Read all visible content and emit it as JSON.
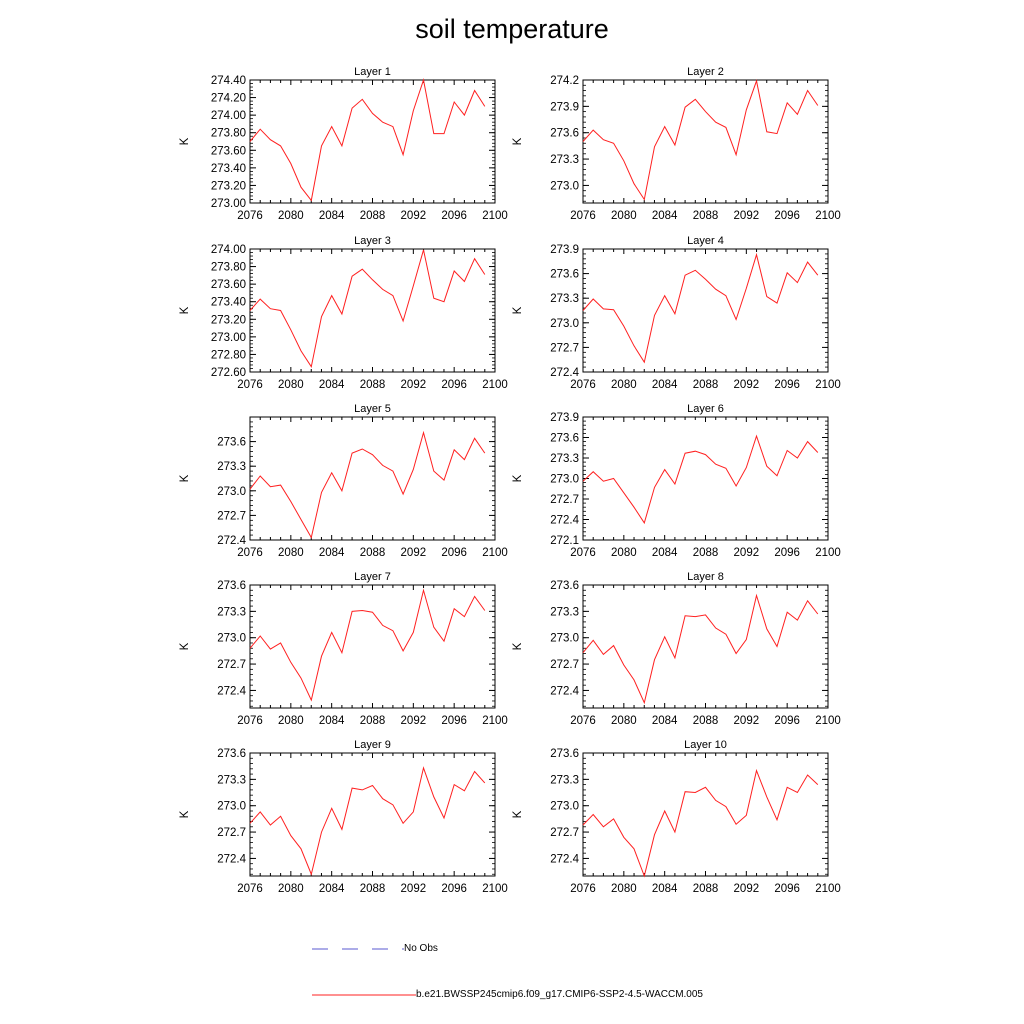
{
  "title": "soil temperature",
  "legend": {
    "obs_label": "No Obs",
    "obs_color": "#5a5ad0",
    "model_label": "b.e21.BWSSP245cmip6.f09_g17.CMIP6-SSP2-4.5-WACCM.005",
    "model_color": "#ff2020"
  },
  "chart_data": [
    {
      "type": "line",
      "title": "Layer 1",
      "ylabel": "K",
      "xlim": [
        2076,
        2100
      ],
      "ylim": [
        273.0,
        274.4
      ],
      "xticks": [
        "2076",
        "2080",
        "2084",
        "2088",
        "2092",
        "2096",
        "2100"
      ],
      "yticks": [
        "273.00",
        "273.20",
        "273.40",
        "273.60",
        "273.80",
        "274.00",
        "274.20",
        "274.40"
      ],
      "x": [
        2076,
        2077,
        2078,
        2079,
        2080,
        2081,
        2082,
        2083,
        2084,
        2085,
        2086,
        2087,
        2088,
        2089,
        2090,
        2091,
        2092,
        2093,
        2094,
        2095,
        2096,
        2097,
        2098,
        2099
      ],
      "series": [
        {
          "values": [
            273.7,
            273.84,
            273.72,
            273.65,
            273.45,
            273.18,
            273.03,
            273.65,
            273.87,
            273.65,
            274.08,
            274.18,
            274.02,
            273.92,
            273.87,
            273.55,
            274.05,
            274.4,
            273.79,
            273.79,
            274.15,
            274.0,
            274.28,
            274.1
          ]
        }
      ]
    },
    {
      "type": "line",
      "title": "Layer 2",
      "ylabel": "K",
      "xlim": [
        2076,
        2100
      ],
      "ylim": [
        272.8,
        274.2
      ],
      "xticks": [
        "2076",
        "2080",
        "2084",
        "2088",
        "2092",
        "2096",
        "2100"
      ],
      "yticks": [
        "273.0",
        "273.3",
        "273.6",
        "273.9",
        "274.2"
      ],
      "x": [
        2076,
        2077,
        2078,
        2079,
        2080,
        2081,
        2082,
        2083,
        2084,
        2085,
        2086,
        2087,
        2088,
        2089,
        2090,
        2091,
        2092,
        2093,
        2094,
        2095,
        2096,
        2097,
        2098,
        2099
      ],
      "series": [
        {
          "values": [
            273.5,
            273.63,
            273.52,
            273.48,
            273.28,
            273.02,
            272.84,
            273.44,
            273.67,
            273.46,
            273.89,
            273.98,
            273.84,
            273.72,
            273.66,
            273.35,
            273.86,
            274.19,
            273.61,
            273.59,
            273.94,
            273.81,
            274.08,
            273.91
          ]
        }
      ]
    },
    {
      "type": "line",
      "title": "Layer 3",
      "ylabel": "K",
      "xlim": [
        2076,
        2100
      ],
      "ylim": [
        272.6,
        274.0
      ],
      "xticks": [
        "2076",
        "2080",
        "2084",
        "2088",
        "2092",
        "2096",
        "2100"
      ],
      "yticks": [
        "272.60",
        "272.80",
        "273.00",
        "273.20",
        "273.40",
        "273.60",
        "273.80",
        "274.00"
      ],
      "x": [
        2076,
        2077,
        2078,
        2079,
        2080,
        2081,
        2082,
        2083,
        2084,
        2085,
        2086,
        2087,
        2088,
        2089,
        2090,
        2091,
        2092,
        2093,
        2094,
        2095,
        2096,
        2097,
        2098,
        2099
      ],
      "series": [
        {
          "values": [
            273.3,
            273.43,
            273.32,
            273.3,
            273.08,
            272.84,
            272.66,
            273.23,
            273.47,
            273.26,
            273.69,
            273.77,
            273.65,
            273.54,
            273.47,
            273.18,
            273.58,
            273.99,
            273.44,
            273.4,
            273.75,
            273.63,
            273.89,
            273.71
          ]
        }
      ]
    },
    {
      "type": "line",
      "title": "Layer 4",
      "ylabel": "K",
      "xlim": [
        2076,
        2100
      ],
      "ylim": [
        272.4,
        273.9
      ],
      "xticks": [
        "2076",
        "2080",
        "2084",
        "2088",
        "2092",
        "2096",
        "2100"
      ],
      "yticks": [
        "272.4",
        "272.7",
        "273.0",
        "273.3",
        "273.6",
        "273.9"
      ],
      "x": [
        2076,
        2077,
        2078,
        2079,
        2080,
        2081,
        2082,
        2083,
        2084,
        2085,
        2086,
        2087,
        2088,
        2089,
        2090,
        2091,
        2092,
        2093,
        2094,
        2095,
        2096,
        2097,
        2098,
        2099
      ],
      "series": [
        {
          "values": [
            273.15,
            273.29,
            273.17,
            273.16,
            272.96,
            272.72,
            272.52,
            273.09,
            273.33,
            273.11,
            273.58,
            273.64,
            273.53,
            273.41,
            273.33,
            273.04,
            273.42,
            273.83,
            273.32,
            273.24,
            273.61,
            273.49,
            273.74,
            273.58
          ]
        }
      ]
    },
    {
      "type": "line",
      "title": "Layer 5",
      "ylabel": "K",
      "xlim": [
        2076,
        2100
      ],
      "ylim": [
        272.4,
        273.9
      ],
      "xticks": [
        "2076",
        "2080",
        "2084",
        "2088",
        "2092",
        "2096",
        "2100"
      ],
      "yticks": [
        "272.4",
        "272.7",
        "273.0",
        "273.3",
        "273.6"
      ],
      "x": [
        2076,
        2077,
        2078,
        2079,
        2080,
        2081,
        2082,
        2083,
        2084,
        2085,
        2086,
        2087,
        2088,
        2089,
        2090,
        2091,
        2092,
        2093,
        2094,
        2095,
        2096,
        2097,
        2098,
        2099
      ],
      "series": [
        {
          "values": [
            273.02,
            273.18,
            273.05,
            273.07,
            272.87,
            272.65,
            272.43,
            272.98,
            273.22,
            273.0,
            273.46,
            273.51,
            273.44,
            273.31,
            273.24,
            272.96,
            273.26,
            273.71,
            273.24,
            273.13,
            273.5,
            273.38,
            273.64,
            273.46
          ]
        }
      ]
    },
    {
      "type": "line",
      "title": "Layer 6",
      "ylabel": "K",
      "xlim": [
        2076,
        2100
      ],
      "ylim": [
        272.1,
        273.9
      ],
      "xticks": [
        "2076",
        "2080",
        "2084",
        "2088",
        "2092",
        "2096",
        "2100"
      ],
      "yticks": [
        "272.1",
        "272.4",
        "272.7",
        "273.0",
        "273.3",
        "273.6",
        "273.9"
      ],
      "x": [
        2076,
        2077,
        2078,
        2079,
        2080,
        2081,
        2082,
        2083,
        2084,
        2085,
        2086,
        2087,
        2088,
        2089,
        2090,
        2091,
        2092,
        2093,
        2094,
        2095,
        2096,
        2097,
        2098,
        2099
      ],
      "series": [
        {
          "values": [
            272.96,
            273.1,
            272.96,
            273.0,
            272.79,
            272.58,
            272.35,
            272.87,
            273.13,
            272.92,
            273.37,
            273.4,
            273.35,
            273.21,
            273.15,
            272.89,
            273.16,
            273.62,
            273.18,
            273.04,
            273.41,
            273.3,
            273.54,
            273.38
          ]
        }
      ]
    },
    {
      "type": "line",
      "title": "Layer 7",
      "ylabel": "K",
      "xlim": [
        2076,
        2100
      ],
      "ylim": [
        272.2,
        273.6
      ],
      "xticks": [
        "2076",
        "2080",
        "2084",
        "2088",
        "2092",
        "2096",
        "2100"
      ],
      "yticks": [
        "272.4",
        "272.7",
        "273.0",
        "273.3",
        "273.6"
      ],
      "x": [
        2076,
        2077,
        2078,
        2079,
        2080,
        2081,
        2082,
        2083,
        2084,
        2085,
        2086,
        2087,
        2088,
        2089,
        2090,
        2091,
        2092,
        2093,
        2094,
        2095,
        2096,
        2097,
        2098,
        2099
      ],
      "series": [
        {
          "values": [
            272.88,
            273.02,
            272.87,
            272.94,
            272.72,
            272.54,
            272.29,
            272.79,
            273.06,
            272.83,
            273.3,
            273.31,
            273.29,
            273.14,
            273.08,
            272.85,
            273.06,
            273.54,
            273.12,
            272.96,
            273.33,
            273.24,
            273.47,
            273.31
          ]
        }
      ]
    },
    {
      "type": "line",
      "title": "Layer 8",
      "ylabel": "K",
      "xlim": [
        2076,
        2100
      ],
      "ylim": [
        272.2,
        273.6
      ],
      "xticks": [
        "2076",
        "2080",
        "2084",
        "2088",
        "2092",
        "2096",
        "2100"
      ],
      "yticks": [
        "272.4",
        "272.7",
        "273.0",
        "273.3",
        "273.6"
      ],
      "x": [
        2076,
        2077,
        2078,
        2079,
        2080,
        2081,
        2082,
        2083,
        2084,
        2085,
        2086,
        2087,
        2088,
        2089,
        2090,
        2091,
        2092,
        2093,
        2094,
        2095,
        2096,
        2097,
        2098,
        2099
      ],
      "series": [
        {
          "values": [
            272.83,
            272.97,
            272.81,
            272.91,
            272.69,
            272.52,
            272.26,
            272.75,
            273.01,
            272.77,
            273.25,
            273.24,
            273.26,
            273.11,
            273.04,
            272.82,
            272.98,
            273.48,
            273.1,
            272.9,
            273.29,
            273.2,
            273.42,
            273.27
          ]
        }
      ]
    },
    {
      "type": "line",
      "title": "Layer 9",
      "ylabel": "K",
      "xlim": [
        2076,
        2100
      ],
      "ylim": [
        272.2,
        273.6
      ],
      "xticks": [
        "2076",
        "2080",
        "2084",
        "2088",
        "2092",
        "2096",
        "2100"
      ],
      "yticks": [
        "272.4",
        "272.7",
        "273.0",
        "273.3",
        "273.6"
      ],
      "x": [
        2076,
        2077,
        2078,
        2079,
        2080,
        2081,
        2082,
        2083,
        2084,
        2085,
        2086,
        2087,
        2088,
        2089,
        2090,
        2091,
        2092,
        2093,
        2094,
        2095,
        2096,
        2097,
        2098,
        2099
      ],
      "series": [
        {
          "values": [
            272.8,
            272.93,
            272.78,
            272.88,
            272.66,
            272.51,
            272.22,
            272.7,
            272.97,
            272.73,
            273.2,
            273.18,
            273.23,
            273.08,
            273.01,
            272.8,
            272.93,
            273.43,
            273.1,
            272.86,
            273.24,
            273.17,
            273.39,
            273.26
          ]
        }
      ]
    },
    {
      "type": "line",
      "title": "Layer 10",
      "ylabel": "K",
      "xlim": [
        2076,
        2100
      ],
      "ylim": [
        272.2,
        273.6
      ],
      "xticks": [
        "2076",
        "2080",
        "2084",
        "2088",
        "2092",
        "2096",
        "2100"
      ],
      "yticks": [
        "272.4",
        "272.7",
        "273.0",
        "273.3",
        "273.6"
      ],
      "x": [
        2076,
        2077,
        2078,
        2079,
        2080,
        2081,
        2082,
        2083,
        2084,
        2085,
        2086,
        2087,
        2088,
        2089,
        2090,
        2091,
        2092,
        2093,
        2094,
        2095,
        2096,
        2097,
        2098,
        2099
      ],
      "series": [
        {
          "values": [
            272.78,
            272.9,
            272.76,
            272.85,
            272.64,
            272.51,
            272.2,
            272.67,
            272.94,
            272.7,
            273.16,
            273.15,
            273.21,
            273.06,
            272.99,
            272.79,
            272.89,
            273.4,
            273.1,
            272.84,
            273.21,
            273.15,
            273.35,
            273.24
          ]
        }
      ]
    }
  ]
}
